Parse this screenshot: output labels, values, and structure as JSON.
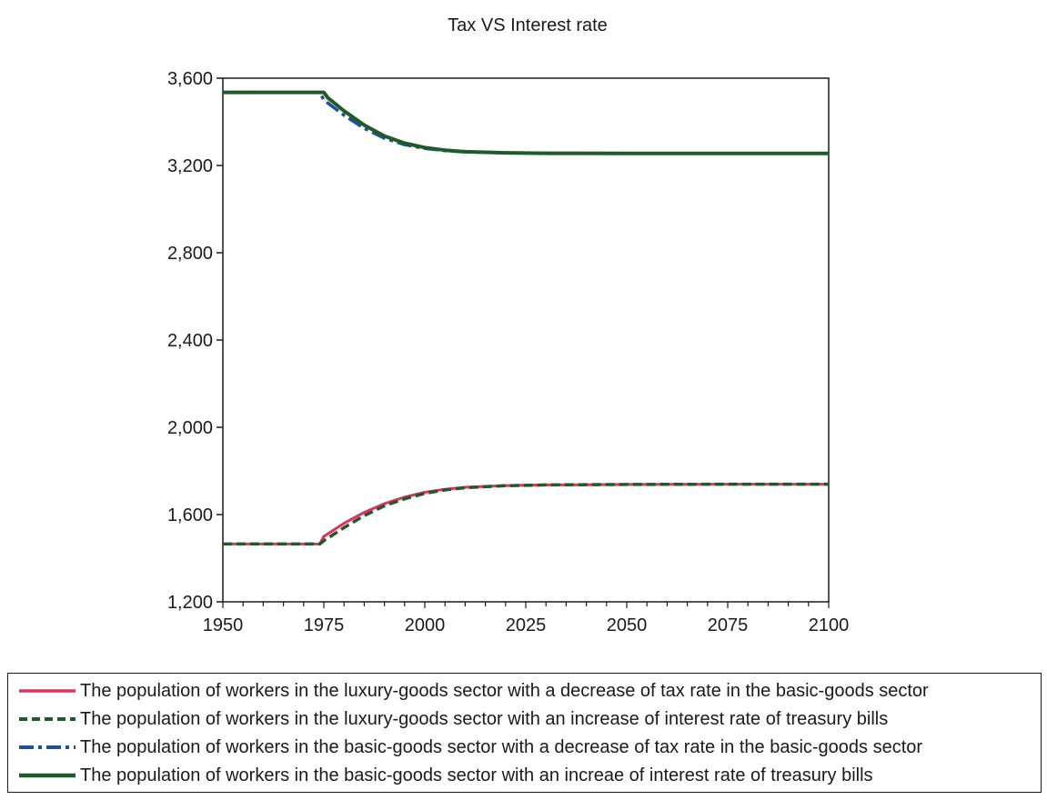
{
  "chart_data": {
    "type": "line",
    "title": "Tax VS Interest rate",
    "xlabel": "",
    "ylabel": "",
    "xlim": [
      1950,
      2100
    ],
    "ylim": [
      1200,
      3600
    ],
    "x_ticks": [
      1950,
      1975,
      2000,
      2025,
      2050,
      2075,
      2100
    ],
    "y_ticks": [
      1200,
      1600,
      2000,
      2400,
      2800,
      3200,
      3600
    ],
    "y_tick_labels": [
      "1,200",
      "1,600",
      "2,000",
      "2,400",
      "2,800",
      "3,200",
      "3,600"
    ],
    "x_tick_labels": [
      "1950",
      "1975",
      "2000",
      "2025",
      "2050",
      "2075",
      "2100"
    ],
    "grid": false,
    "legend_position": "bottom",
    "series": [
      {
        "name": "The population of workers in the luxury-goods sector with a decrease of tax rate in the basic-goods sector",
        "color": "#e0325a",
        "dash": "solid",
        "points": [
          [
            1950,
            1465
          ],
          [
            1974,
            1465
          ],
          [
            1975,
            1500
          ],
          [
            1980,
            1560
          ],
          [
            1985,
            1610
          ],
          [
            1990,
            1650
          ],
          [
            1995,
            1680
          ],
          [
            2000,
            1702
          ],
          [
            2005,
            1716
          ],
          [
            2010,
            1725
          ],
          [
            2020,
            1733
          ],
          [
            2030,
            1736
          ],
          [
            2050,
            1738
          ],
          [
            2075,
            1739
          ],
          [
            2100,
            1739
          ]
        ]
      },
      {
        "name": "The population of workers in the luxury-goods sector with an increase of interest rate of treasury bills",
        "color": "#1f5a2a",
        "dash": "dashed",
        "points": [
          [
            1950,
            1465
          ],
          [
            1974,
            1465
          ],
          [
            1975,
            1480
          ],
          [
            1980,
            1540
          ],
          [
            1985,
            1595
          ],
          [
            1990,
            1640
          ],
          [
            1995,
            1672
          ],
          [
            2000,
            1697
          ],
          [
            2005,
            1713
          ],
          [
            2010,
            1723
          ],
          [
            2020,
            1732
          ],
          [
            2030,
            1736
          ],
          [
            2050,
            1738
          ],
          [
            2075,
            1739
          ],
          [
            2100,
            1739
          ]
        ]
      },
      {
        "name": "The population of workers in the basic-goods sector with a decrease of tax rate in the basic-goods sector",
        "color": "#1f4e9c",
        "dash": "dashdot",
        "points": [
          [
            1950,
            3535
          ],
          [
            1974,
            3535
          ],
          [
            1975,
            3500
          ],
          [
            1980,
            3430
          ],
          [
            1985,
            3370
          ],
          [
            1990,
            3325
          ],
          [
            1995,
            3295
          ],
          [
            2000,
            3278
          ],
          [
            2005,
            3268
          ],
          [
            2010,
            3262
          ],
          [
            2020,
            3258
          ],
          [
            2030,
            3256
          ],
          [
            2050,
            3255
          ],
          [
            2075,
            3255
          ],
          [
            2100,
            3255
          ]
        ]
      },
      {
        "name": "The population of workers in the basic-goods sector with an increae of interest rate of treasury bills",
        "color": "#1f5a2a",
        "dash": "solid",
        "points": [
          [
            1950,
            3535
          ],
          [
            1975,
            3535
          ],
          [
            1976,
            3510
          ],
          [
            1980,
            3450
          ],
          [
            1985,
            3385
          ],
          [
            1990,
            3335
          ],
          [
            1995,
            3302
          ],
          [
            2000,
            3282
          ],
          [
            2005,
            3270
          ],
          [
            2010,
            3263
          ],
          [
            2020,
            3258
          ],
          [
            2030,
            3256
          ],
          [
            2050,
            3255
          ],
          [
            2075,
            3255
          ],
          [
            2100,
            3255
          ]
        ]
      }
    ]
  }
}
